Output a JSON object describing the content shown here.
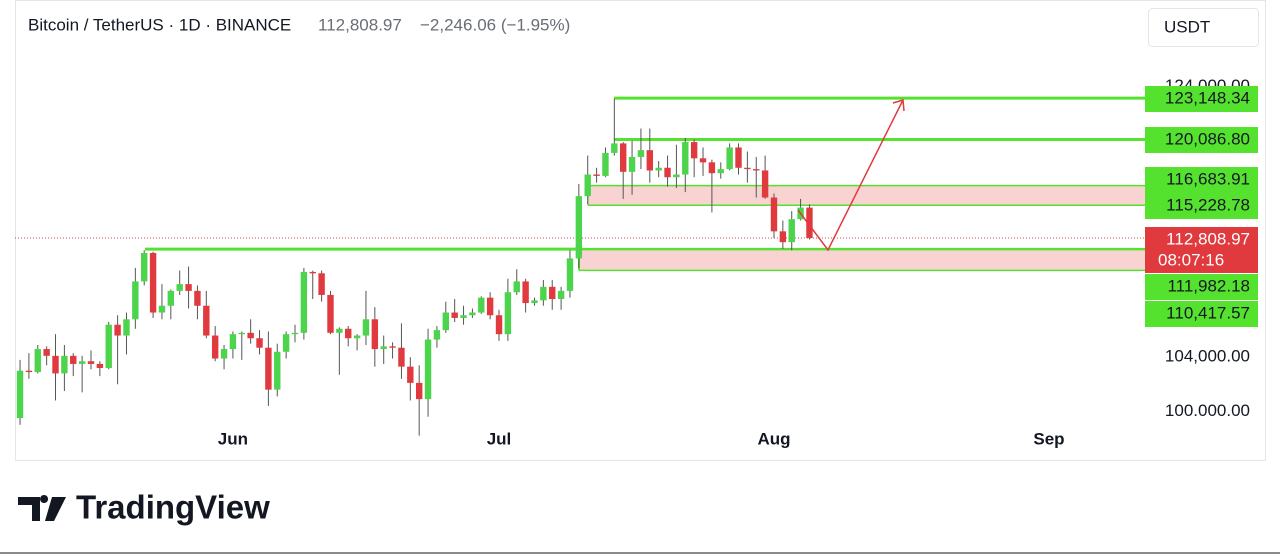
{
  "chart_data": {
    "type": "candlestick",
    "title": "Bitcoin / TetherUS · 1D · BINANCE",
    "change_label": "−2,246.06 (−1.95%)",
    "currency": "USDT",
    "brand": "TradingView",
    "up_color": "#4cd44c",
    "down_color": "#e0393e",
    "level_color": "#55e22f",
    "zone_color": "#f9d2d2",
    "categories": [
      null,
      null,
      null,
      null,
      null,
      null,
      null,
      null,
      null,
      null,
      null,
      null,
      null,
      null,
      null,
      null,
      null,
      null,
      null,
      null,
      null,
      null,
      null,
      null,
      "Jun",
      null,
      null,
      null,
      null,
      null,
      null,
      null,
      null,
      null,
      null,
      null,
      null,
      null,
      null,
      null,
      null,
      null,
      null,
      null,
      null,
      null,
      null,
      null,
      null,
      null,
      null,
      null,
      null,
      null,
      "Jul",
      null,
      null,
      null,
      null,
      null,
      null,
      null,
      null,
      null,
      null,
      null,
      null,
      null,
      null,
      null,
      null,
      null,
      null,
      null,
      null,
      null,
      null,
      null,
      null,
      null,
      null,
      null,
      null,
      null,
      null,
      "Aug",
      null,
      null,
      null,
      null,
      null,
      null,
      null,
      null,
      null,
      null,
      null,
      null,
      null,
      null,
      null,
      null,
      null,
      null,
      null,
      null,
      null,
      null,
      null,
      null,
      null,
      null,
      null,
      null,
      null,
      null,
      "Sep",
      null,
      null,
      null,
      null,
      null,
      null,
      null,
      null,
      null,
      null
    ],
    "open": [
      99500,
      103000,
      102900,
      104600,
      104100,
      102800,
      104100,
      103500,
      103700,
      103500,
      103200,
      106400,
      105600,
      106800,
      109600,
      111700,
      107300,
      107800,
      108900,
      109400,
      108900,
      107800,
      105600,
      103900,
      104600,
      105700,
      105800,
      105400,
      104700,
      101600,
      104400,
      105700,
      105800,
      110300,
      110200,
      108600,
      105800,
      106100,
      105400,
      105600,
      106800,
      104600,
      104800,
      104700,
      103300,
      102100,
      100900,
      105300,
      106000,
      107300,
      106900,
      107100,
      107300,
      108400,
      107100,
      105700,
      108800,
      109600,
      108000,
      108200,
      109200,
      108300,
      108900,
      111300,
      115900,
      117500,
      117400,
      119100,
      119800,
      117700,
      118800,
      119300,
      117800,
      118000,
      117300,
      117500,
      119900,
      118700,
      118400,
      117600,
      117900,
      119500,
      118000,
      117900,
      117800,
      115800,
      113300,
      112500,
      114200,
      115055.03,
      null,
      null,
      null,
      null,
      null,
      null,
      null,
      null,
      null,
      null,
      null,
      null,
      null,
      null,
      null,
      null,
      null,
      null,
      null,
      null,
      null,
      null,
      null,
      null,
      null,
      null,
      null,
      null,
      null,
      null,
      null,
      null,
      null,
      null,
      null,
      null,
      null
    ],
    "high": [
      103800,
      104300,
      104900,
      104800,
      105700,
      104900,
      104300,
      104100,
      104500,
      103700,
      106600,
      107100,
      107300,
      110600,
      111900,
      111800,
      109400,
      109000,
      110400,
      110700,
      109300,
      108900,
      106300,
      104900,
      105900,
      105900,
      106800,
      106000,
      105900,
      105000,
      105900,
      106400,
      110600,
      110400,
      110400,
      108900,
      106200,
      106300,
      105700,
      108900,
      107700,
      105600,
      105100,
      106500,
      104000,
      103400,
      106100,
      106300,
      108100,
      108300,
      107800,
      107600,
      108500,
      108800,
      107500,
      109800,
      110500,
      109800,
      108400,
      109700,
      109700,
      109200,
      111900,
      116800,
      118900,
      118000,
      119500,
      123100,
      119900,
      120000,
      120900,
      120900,
      118500,
      118900,
      119700,
      120200,
      120100,
      119500,
      118600,
      118400,
      119800,
      119800,
      119200,
      118800,
      118900,
      116100,
      114100,
      114800,
      115700,
      115300,
      null,
      null,
      null,
      null,
      null,
      null,
      null,
      null,
      null,
      null,
      null,
      null,
      null,
      null,
      null,
      null,
      null,
      null,
      null,
      null,
      null,
      null,
      null,
      null,
      null,
      null,
      null,
      null,
      null,
      null,
      null,
      null,
      null,
      null,
      null,
      null,
      null
    ],
    "low": [
      99000,
      102400,
      102800,
      103400,
      100800,
      101500,
      102600,
      101400,
      103100,
      102600,
      103100,
      102000,
      104200,
      106100,
      109300,
      106900,
      106800,
      106800,
      108600,
      107600,
      106800,
      105400,
      103700,
      103100,
      103900,
      103800,
      105000,
      104200,
      100400,
      101100,
      103900,
      105100,
      105300,
      108300,
      108100,
      105700,
      102700,
      104800,
      104500,
      104900,
      103300,
      103500,
      103900,
      102400,
      100800,
      98200,
      99600,
      104700,
      105800,
      106600,
      106400,
      106900,
      107200,
      106800,
      105200,
      105200,
      108600,
      107300,
      107800,
      107800,
      107500,
      107500,
      108400,
      110600,
      115300,
      116900,
      117300,
      118900,
      115700,
      116000,
      117900,
      116900,
      117300,
      116600,
      116500,
      116200,
      117300,
      117400,
      114700,
      117200,
      117800,
      117500,
      116900,
      115800,
      115700,
      112800,
      112000,
      111900,
      114100,
      112700,
      null,
      null,
      null,
      null,
      null,
      null,
      null,
      null,
      null,
      null,
      null,
      null,
      null,
      null,
      null,
      null,
      null,
      null,
      null,
      null,
      null,
      null,
      null,
      null,
      null,
      null,
      null,
      null,
      null,
      null,
      null,
      null,
      null,
      null,
      null,
      null,
      null
    ],
    "close": [
      103000,
      102900,
      104600,
      104100,
      102800,
      104100,
      103500,
      103700,
      103500,
      103200,
      106400,
      105600,
      106800,
      109600,
      111700,
      107300,
      107800,
      108900,
      109400,
      108900,
      107800,
      105600,
      103900,
      104600,
      105700,
      105800,
      105400,
      104700,
      101600,
      104400,
      105700,
      105800,
      110300,
      110200,
      108600,
      105800,
      106100,
      105400,
      105600,
      106800,
      104600,
      104800,
      104700,
      103300,
      102100,
      100900,
      105300,
      106000,
      107300,
      106900,
      107100,
      107300,
      108400,
      107100,
      105700,
      108800,
      109600,
      108000,
      108200,
      109200,
      108300,
      108900,
      111300,
      115900,
      117500,
      117400,
      119100,
      119800,
      117700,
      118800,
      119300,
      117800,
      118000,
      117300,
      117500,
      119900,
      118700,
      118400,
      117600,
      117900,
      119500,
      118000,
      117900,
      117800,
      115800,
      113300,
      112500,
      114200,
      115055.03,
      112808.97,
      null,
      null,
      null,
      null,
      null,
      null,
      null,
      null,
      null,
      null,
      null,
      null,
      null,
      null,
      null,
      null,
      null,
      null,
      null,
      null,
      null,
      null,
      null,
      null,
      null,
      null,
      null,
      null,
      null,
      null,
      null,
      null,
      null,
      null,
      null,
      null,
      null
    ],
    "ylim": [
      96400,
      130400
    ],
    "yticks": [
      {
        "value": 124000,
        "label": "124,000.00"
      },
      {
        "value": 104000,
        "label": "104,000.00"
      },
      {
        "value": 100000,
        "label": "100.000.00"
      }
    ],
    "levels": [
      123148.34,
      120086.8,
      116683.91,
      115228.78,
      111982.18,
      110417.57
    ],
    "level_labels": [
      "123,148.34",
      "120,086.80",
      "116,683.91",
      "115,228.78",
      "111,982.18",
      "110,417.57"
    ],
    "last": {
      "value": 112808.97,
      "label": "112,808.97",
      "countdown": "08:07:16"
    }
  }
}
